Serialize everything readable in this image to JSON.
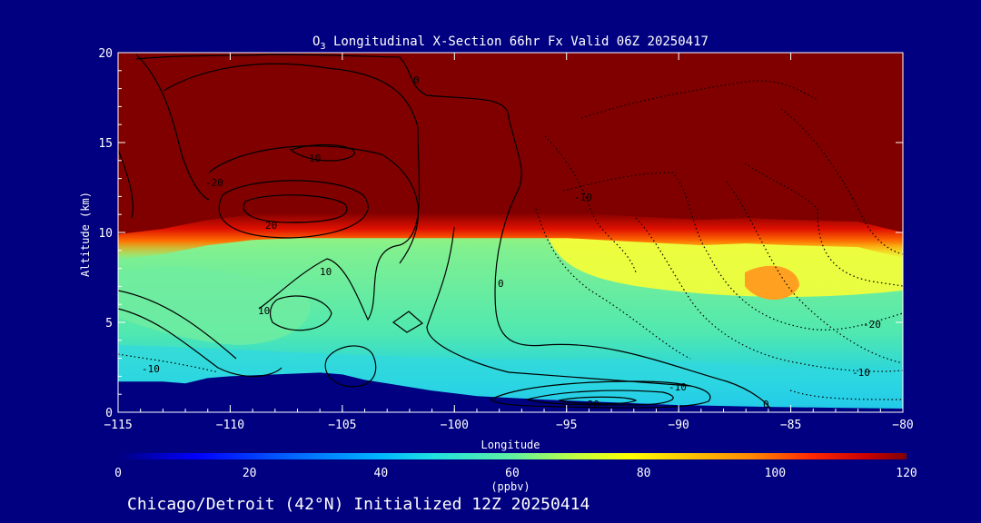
{
  "chart_data": {
    "type": "heatmap",
    "title_prefix": "O",
    "title_sub": "3",
    "title_rest": " Longitudinal X-Section 66hr  Fx Valid 06Z 20250417",
    "xlabel": "Longitude",
    "ylabel": "Altitude (km)",
    "xlim": [
      -115,
      -80
    ],
    "ylim": [
      0,
      20
    ],
    "x_ticks": [
      -115,
      -110,
      -105,
      -100,
      -95,
      -90,
      -85,
      -80
    ],
    "x_tick_labels": [
      "-115",
      "-110",
      "-105",
      "-100",
      "-95",
      "-90",
      "-85",
      "-80"
    ],
    "y_ticks": [
      0,
      5,
      10,
      15,
      20
    ],
    "y_tick_labels": [
      "0",
      "5",
      "10",
      "15",
      "20"
    ],
    "colorbar": {
      "min": 0,
      "max": 120,
      "ticks": [
        0,
        20,
        40,
        60,
        80,
        100,
        120
      ],
      "tick_labels": [
        "0",
        "20",
        "40",
        "60",
        "80",
        "100",
        "120"
      ],
      "unit_label": "(ppbv)",
      "colors": [
        "#000080",
        "#0000ff",
        "#0080ff",
        "#00c8ff",
        "#40e0d0",
        "#80f080",
        "#ffff00",
        "#ffc000",
        "#ff8000",
        "#ff2000",
        "#c00000",
        "#800000"
      ]
    },
    "terrain": [
      [
        -115,
        1.7
      ],
      [
        -113,
        1.7
      ],
      [
        -112,
        1.6
      ],
      [
        -111,
        1.9
      ],
      [
        -110,
        2.0
      ],
      [
        -108,
        2.1
      ],
      [
        -106,
        2.2
      ],
      [
        -105,
        2.1
      ],
      [
        -104,
        1.8
      ],
      [
        -103,
        1.6
      ],
      [
        -101,
        1.2
      ],
      [
        -99,
        0.9
      ],
      [
        -96,
        0.7
      ],
      [
        -94,
        0.6
      ],
      [
        -90,
        0.4
      ],
      [
        -86,
        0.3
      ],
      [
        -83,
        0.25
      ],
      [
        -80,
        0.2
      ]
    ],
    "tropopause": [
      [
        -115,
        9.8
      ],
      [
        -113,
        10.1
      ],
      [
        -111,
        10.6
      ],
      [
        -109,
        10.9
      ],
      [
        -107,
        11.0
      ],
      [
        -104,
        11.0
      ],
      [
        -101,
        11.0
      ],
      [
        -98,
        11.0
      ],
      [
        -95,
        11.0
      ],
      [
        -92,
        10.8
      ],
      [
        -89,
        10.6
      ],
      [
        -87,
        10.7
      ],
      [
        -85,
        10.6
      ],
      [
        -82,
        10.5
      ],
      [
        -80,
        9.9
      ]
    ],
    "contour_labels": [
      "0",
      "0",
      "0",
      "10",
      "10",
      "10",
      "20",
      "-10",
      "-10",
      "-10",
      "-10",
      "-20",
      "-20",
      "-20"
    ],
    "footer": "Chicago/Detroit (42°N) Initialized 12Z 20250414"
  }
}
